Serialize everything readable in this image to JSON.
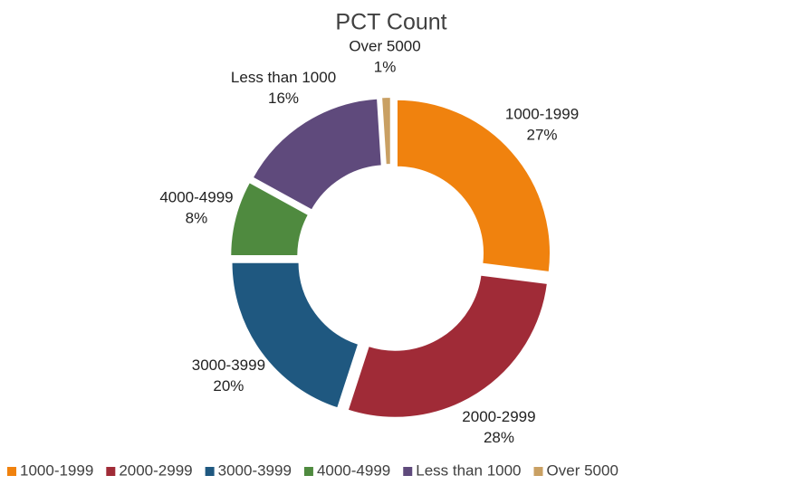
{
  "chart_data": {
    "type": "donut",
    "title": "PCT Count",
    "categories": [
      "1000-1999",
      "2000-2999",
      "3000-3999",
      "4000-4999",
      "Less than 1000",
      "Over 5000"
    ],
    "values": [
      27,
      28,
      20,
      8,
      16,
      1
    ],
    "value_labels": [
      "27%",
      "28%",
      "20%",
      "8%",
      "16%",
      "1%"
    ],
    "colors": [
      "#f0820e",
      "#a02b37",
      "#1f5880",
      "#4f8a3f",
      "#5f4a7c",
      "#c9a063"
    ],
    "legend": "bottom"
  }
}
